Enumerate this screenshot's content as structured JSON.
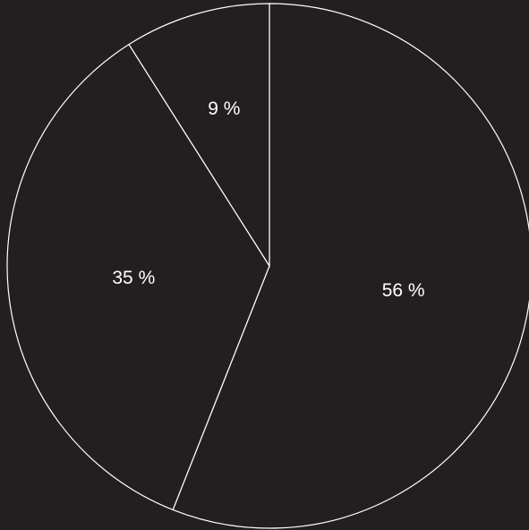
{
  "chart_data": {
    "type": "pie",
    "slices": [
      {
        "value": 56,
        "label": "56 %"
      },
      {
        "value": 35,
        "label": "35 %"
      },
      {
        "value": 9,
        "label": "9 %"
      }
    ],
    "start": "top",
    "direction": "clockwise"
  },
  "colors": {
    "background": "#231f20",
    "slice_fill": "#231f20",
    "slice_stroke": "#ffffff",
    "label": "#ffffff"
  }
}
